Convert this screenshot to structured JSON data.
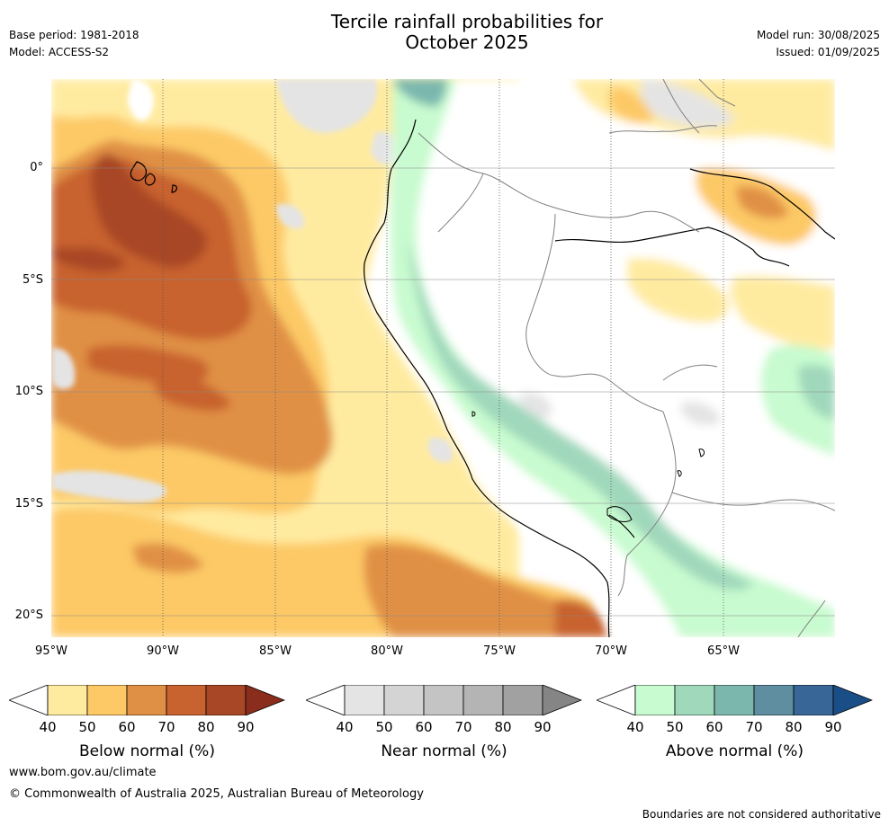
{
  "header": {
    "title_line1": "Tercile rainfall probabilities for",
    "title_line2": "October 2025",
    "base_period": "Base period: 1981-2018",
    "model": "Model: ACCESS-S2",
    "model_run": "Model run: 30/08/2025",
    "issued": "Issued: 01/09/2025"
  },
  "map": {
    "lat_labels": [
      "0°",
      "5°S",
      "10°S",
      "15°S",
      "20°S"
    ],
    "lon_labels": [
      "95°W",
      "90°W",
      "85°W",
      "80°W",
      "75°W",
      "70°W",
      "65°W"
    ]
  },
  "legends": [
    {
      "title": "Below normal (%)",
      "ticks": [
        "40",
        "50",
        "60",
        "70",
        "80",
        "90"
      ],
      "colors": [
        "#ffffff",
        "#ffeba0",
        "#fdc966",
        "#e09044",
        "#c8622e",
        "#a84726",
        "#8b2d1c"
      ]
    },
    {
      "title": "Near normal (%)",
      "ticks": [
        "40",
        "50",
        "60",
        "70",
        "80",
        "90"
      ],
      "colors": [
        "#ffffff",
        "#e4e4e4",
        "#d4d4d4",
        "#c4c4c4",
        "#b4b4b4",
        "#a1a1a1",
        "#858585"
      ]
    },
    {
      "title": "Above normal (%)",
      "ticks": [
        "40",
        "50",
        "60",
        "70",
        "80",
        "90"
      ],
      "colors": [
        "#ffffff",
        "#c8fbcf",
        "#a0d8bc",
        "#7cb7ae",
        "#5e8ea0",
        "#386697",
        "#1a4e86"
      ]
    }
  ],
  "footer": {
    "website": "www.bom.gov.au/climate",
    "copyright": "© Commonwealth of Australia 2025, Australian Bureau of Meteorology",
    "disclaimer": "Boundaries are not considered authoritative"
  }
}
